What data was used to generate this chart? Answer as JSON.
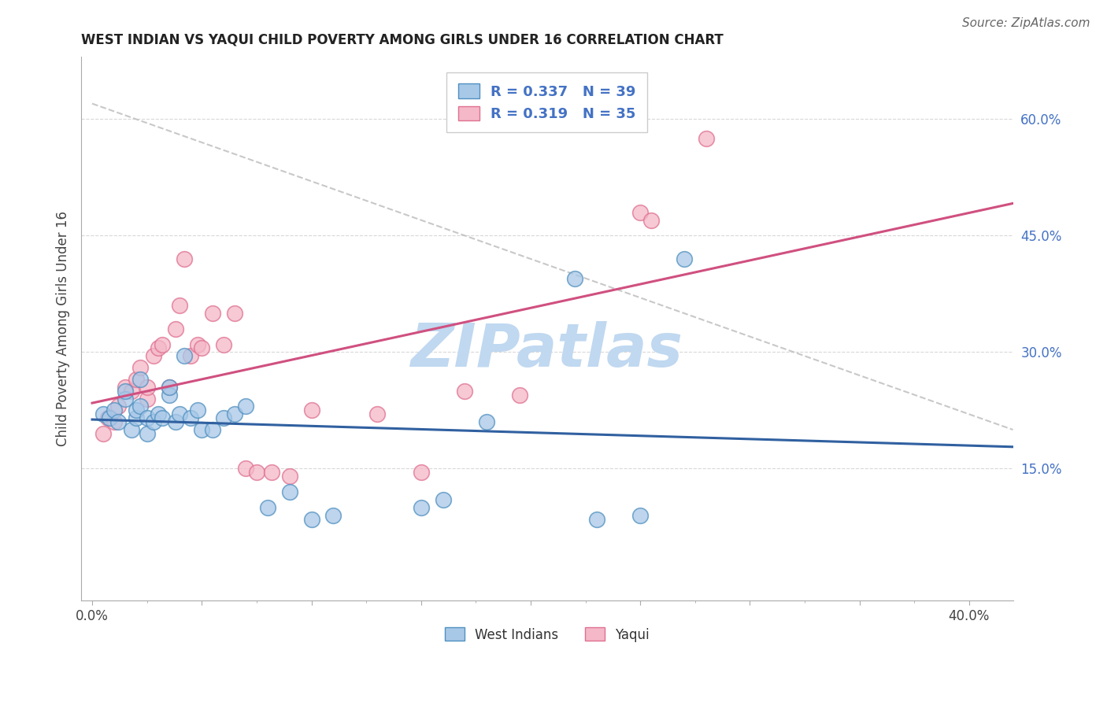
{
  "title": "WEST INDIAN VS YAQUI CHILD POVERTY AMONG GIRLS UNDER 16 CORRELATION CHART",
  "source": "Source: ZipAtlas.com",
  "ylabel": "Child Poverty Among Girls Under 16",
  "xlabel_ticks": [
    "0.0%",
    "",
    "",
    "",
    "",
    "",
    "",
    "",
    "40.0%"
  ],
  "xlabel_vals": [
    0.0,
    0.05,
    0.1,
    0.15,
    0.2,
    0.25,
    0.3,
    0.35,
    0.4
  ],
  "ylabel_ticks_right": [
    "60.0%",
    "45.0%",
    "30.0%",
    "15.0%"
  ],
  "ylabel_vals_right": [
    0.6,
    0.45,
    0.3,
    0.15
  ],
  "ylim": [
    -0.02,
    0.68
  ],
  "xlim": [
    -0.005,
    0.42
  ],
  "R_west_indian": 0.337,
  "N_west_indian": 39,
  "R_yaqui": 0.319,
  "N_yaqui": 35,
  "legend_labels": [
    "West Indians",
    "Yaqui"
  ],
  "blue_scatter_color": "#a8c8e8",
  "pink_scatter_color": "#f4b8c8",
  "blue_line_color": "#3060a0",
  "pink_line_color": "#d05080",
  "blue_edge_color": "#5090c0",
  "pink_edge_color": "#e07090",
  "watermark": "ZIPatlas",
  "watermark_color": "#c0d8f0",
  "grid_color": "#d8d8d8",
  "west_indian_x": [
    0.005,
    0.008,
    0.01,
    0.012,
    0.015,
    0.015,
    0.018,
    0.02,
    0.02,
    0.022,
    0.022,
    0.025,
    0.025,
    0.028,
    0.03,
    0.032,
    0.035,
    0.035,
    0.038,
    0.04,
    0.042,
    0.045,
    0.048,
    0.05,
    0.055,
    0.06,
    0.065,
    0.07,
    0.08,
    0.09,
    0.1,
    0.11,
    0.15,
    0.16,
    0.18,
    0.22,
    0.23,
    0.25,
    0.27
  ],
  "west_indian_y": [
    0.22,
    0.215,
    0.225,
    0.21,
    0.24,
    0.25,
    0.2,
    0.215,
    0.225,
    0.23,
    0.265,
    0.195,
    0.215,
    0.21,
    0.22,
    0.215,
    0.245,
    0.255,
    0.21,
    0.22,
    0.295,
    0.215,
    0.225,
    0.2,
    0.2,
    0.215,
    0.22,
    0.23,
    0.1,
    0.12,
    0.085,
    0.09,
    0.1,
    0.11,
    0.21,
    0.395,
    0.085,
    0.09,
    0.42
  ],
  "yaqui_x": [
    0.005,
    0.007,
    0.01,
    0.012,
    0.015,
    0.018,
    0.02,
    0.022,
    0.025,
    0.025,
    0.028,
    0.03,
    0.032,
    0.035,
    0.038,
    0.04,
    0.042,
    0.045,
    0.048,
    0.05,
    0.055,
    0.06,
    0.065,
    0.07,
    0.075,
    0.082,
    0.09,
    0.1,
    0.13,
    0.15,
    0.17,
    0.195,
    0.25,
    0.255,
    0.28
  ],
  "yaqui_y": [
    0.195,
    0.215,
    0.21,
    0.23,
    0.255,
    0.25,
    0.265,
    0.28,
    0.24,
    0.255,
    0.295,
    0.305,
    0.31,
    0.255,
    0.33,
    0.36,
    0.42,
    0.295,
    0.31,
    0.305,
    0.35,
    0.31,
    0.35,
    0.15,
    0.145,
    0.145,
    0.14,
    0.225,
    0.22,
    0.145,
    0.25,
    0.245,
    0.48,
    0.47,
    0.575
  ]
}
